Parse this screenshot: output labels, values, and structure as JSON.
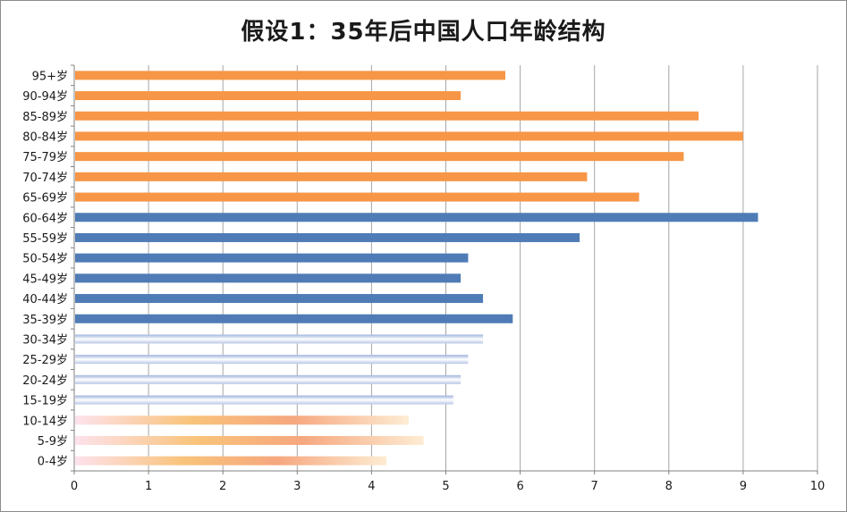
{
  "chart_data": {
    "type": "bar",
    "orientation": "horizontal",
    "title": "假设1：35年后中国人口年龄结构",
    "xlabel": "",
    "ylabel": "",
    "xlim": [
      0,
      10
    ],
    "x_ticks": [
      "0",
      "1",
      "2",
      "3",
      "4",
      "5",
      "6",
      "7",
      "8",
      "9",
      "10"
    ],
    "grid": "vertical",
    "categories": [
      "0-4岁",
      "5-9岁",
      "10-14岁",
      "15-19岁",
      "20-24岁",
      "25-29岁",
      "30-34岁",
      "35-39岁",
      "40-44岁",
      "45-49岁",
      "50-54岁",
      "55-59岁",
      "60-64岁",
      "65-69岁",
      "70-74岁",
      "75-79岁",
      "80-84岁",
      "85-89岁",
      "90-94岁",
      "95+岁"
    ],
    "values": [
      4.2,
      4.7,
      4.5,
      5.1,
      5.2,
      5.3,
      5.5,
      5.9,
      5.5,
      5.2,
      5.3,
      6.8,
      9.2,
      7.6,
      6.9,
      8.2,
      9.0,
      8.4,
      5.2,
      5.8
    ],
    "colors": {
      "youth_gradient": [
        "#fde2ec",
        "#f9c37a",
        "#f6a77e",
        "#fdecd3"
      ],
      "young_adult_gradient": [
        "#9fb3dc",
        "#ffffff",
        "#b8c7e6"
      ],
      "working_age": "#4f7cb6",
      "elderly": "#f79646",
      "grid": "#a6a6a6",
      "axis": "#808080"
    }
  }
}
